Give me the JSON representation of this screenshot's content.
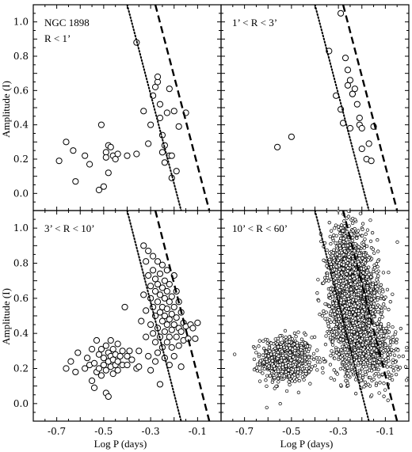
{
  "chart_data": {
    "type": "scatter",
    "xlabel": "Log P (days)",
    "ylabel": "Amplitude (I)",
    "xlim": [
      -0.8,
      0.0
    ],
    "ylim": [
      -0.1,
      1.1
    ],
    "xticks": [
      "-0.7",
      "-0.5",
      "-0.3",
      "-0.1"
    ],
    "xtick_values": [
      -0.7,
      -0.5,
      -0.3,
      -0.1
    ],
    "yticks": [
      "0.0",
      "0.2",
      "0.4",
      "0.6",
      "0.8",
      "1.0"
    ],
    "ytick_values": [
      0.0,
      0.2,
      0.4,
      0.6,
      0.8,
      1.0
    ],
    "lines": {
      "dotted": [
        [
          -0.4,
          1.1
        ],
        [
          -0.17,
          -0.1
        ]
      ],
      "dashed": [
        [
          -0.28,
          1.1
        ],
        [
          -0.05,
          -0.1
        ]
      ]
    },
    "panels": [
      {
        "name": "top-left",
        "title_lines": [
          "NGC 1898",
          "R < 1’"
        ],
        "marker_size": "large",
        "points": [
          [
            -0.69,
            0.19
          ],
          [
            -0.66,
            0.3
          ],
          [
            -0.63,
            0.25
          ],
          [
            -0.62,
            0.07
          ],
          [
            -0.58,
            0.22
          ],
          [
            -0.56,
            0.17
          ],
          [
            -0.52,
            0.02
          ],
          [
            -0.51,
            0.4
          ],
          [
            -0.5,
            0.04
          ],
          [
            -0.49,
            0.24
          ],
          [
            -0.49,
            0.21
          ],
          [
            -0.48,
            0.12
          ],
          [
            -0.48,
            0.28
          ],
          [
            -0.47,
            0.27
          ],
          [
            -0.46,
            0.22
          ],
          [
            -0.45,
            0.2
          ],
          [
            -0.44,
            0.23
          ],
          [
            -0.4,
            0.22
          ],
          [
            -0.36,
            0.23
          ],
          [
            -0.36,
            0.88
          ],
          [
            -0.33,
            0.48
          ],
          [
            -0.31,
            0.29
          ],
          [
            -0.3,
            0.4
          ],
          [
            -0.29,
            0.57
          ],
          [
            -0.28,
            0.62
          ],
          [
            -0.27,
            0.65
          ],
          [
            -0.27,
            0.68
          ],
          [
            -0.26,
            0.52
          ],
          [
            -0.26,
            0.44
          ],
          [
            -0.25,
            0.34
          ],
          [
            -0.25,
            0.24
          ],
          [
            -0.24,
            0.28
          ],
          [
            -0.24,
            0.18
          ],
          [
            -0.23,
            0.47
          ],
          [
            -0.22,
            0.61
          ],
          [
            -0.22,
            0.22
          ],
          [
            -0.21,
            0.09
          ],
          [
            -0.21,
            0.22
          ],
          [
            -0.2,
            0.48
          ],
          [
            -0.19,
            0.13
          ],
          [
            -0.18,
            0.39
          ],
          [
            -0.15,
            0.47
          ]
        ]
      },
      {
        "name": "top-right",
        "title_lines": [
          "1’ < R < 3’"
        ],
        "marker_size": "large",
        "points": [
          [
            -0.56,
            0.27
          ],
          [
            -0.5,
            0.33
          ],
          [
            -0.34,
            0.83
          ],
          [
            -0.31,
            0.57
          ],
          [
            -0.29,
            0.49
          ],
          [
            -0.29,
            1.05
          ],
          [
            -0.28,
            0.41
          ],
          [
            -0.27,
            0.79
          ],
          [
            -0.26,
            0.63
          ],
          [
            -0.26,
            0.72
          ],
          [
            -0.25,
            0.66
          ],
          [
            -0.25,
            0.38
          ],
          [
            -0.24,
            0.58
          ],
          [
            -0.24,
            0.58
          ],
          [
            -0.23,
            0.61
          ],
          [
            -0.22,
            0.52
          ],
          [
            -0.21,
            0.44
          ],
          [
            -0.21,
            0.4
          ],
          [
            -0.2,
            0.38
          ],
          [
            -0.2,
            0.26
          ],
          [
            -0.18,
            0.2
          ],
          [
            -0.17,
            0.29
          ],
          [
            -0.16,
            0.19
          ],
          [
            -0.15,
            0.39
          ]
        ]
      },
      {
        "name": "bottom-left",
        "title_lines": [
          "3’ < R < 10’"
        ],
        "marker_size": "large",
        "points": [
          [
            -0.66,
            0.2
          ],
          [
            -0.64,
            0.24
          ],
          [
            -0.62,
            0.18
          ],
          [
            -0.61,
            0.29
          ],
          [
            -0.58,
            0.2
          ],
          [
            -0.57,
            0.26
          ],
          [
            -0.56,
            0.22
          ],
          [
            -0.55,
            0.13
          ],
          [
            -0.55,
            0.31
          ],
          [
            -0.54,
            0.09
          ],
          [
            -0.54,
            0.23
          ],
          [
            -0.53,
            0.36
          ],
          [
            -0.53,
            0.18
          ],
          [
            -0.52,
            0.28
          ],
          [
            -0.52,
            0.2
          ],
          [
            -0.51,
            0.31
          ],
          [
            -0.51,
            0.16
          ],
          [
            -0.5,
            0.26
          ],
          [
            -0.5,
            0.22
          ],
          [
            -0.49,
            0.33
          ],
          [
            -0.49,
            0.19
          ],
          [
            -0.49,
            0.06
          ],
          [
            -0.48,
            0.29
          ],
          [
            -0.48,
            0.24
          ],
          [
            -0.48,
            0.04
          ],
          [
            -0.47,
            0.36
          ],
          [
            -0.47,
            0.27
          ],
          [
            -0.47,
            0.21
          ],
          [
            -0.46,
            0.31
          ],
          [
            -0.46,
            0.25
          ],
          [
            -0.46,
            0.17
          ],
          [
            -0.45,
            0.28
          ],
          [
            -0.45,
            0.22
          ],
          [
            -0.44,
            0.34
          ],
          [
            -0.44,
            0.24
          ],
          [
            -0.44,
            0.19
          ],
          [
            -0.43,
            0.27
          ],
          [
            -0.42,
            0.3
          ],
          [
            -0.42,
            0.22
          ],
          [
            -0.41,
            0.55
          ],
          [
            -0.4,
            0.27
          ],
          [
            -0.4,
            0.22
          ],
          [
            -0.39,
            0.3
          ],
          [
            -0.38,
            0.25
          ],
          [
            -0.36,
            0.2
          ],
          [
            -0.35,
            0.3
          ],
          [
            -0.35,
            0.21
          ],
          [
            -0.34,
            0.47
          ],
          [
            -0.33,
            0.9
          ],
          [
            -0.33,
            0.62
          ],
          [
            -0.32,
            0.81
          ],
          [
            -0.32,
            0.38
          ],
          [
            -0.32,
            0.53
          ],
          [
            -0.31,
            0.87
          ],
          [
            -0.31,
            0.73
          ],
          [
            -0.31,
            0.27
          ],
          [
            -0.3,
            0.67
          ],
          [
            -0.3,
            0.6
          ],
          [
            -0.3,
            0.45
          ],
          [
            -0.3,
            0.19
          ],
          [
            -0.29,
            0.84
          ],
          [
            -0.29,
            0.76
          ],
          [
            -0.29,
            0.55
          ],
          [
            -0.29,
            0.4
          ],
          [
            -0.28,
            0.71
          ],
          [
            -0.28,
            0.64
          ],
          [
            -0.28,
            0.5
          ],
          [
            -0.28,
            0.35
          ],
          [
            -0.28,
            0.24
          ],
          [
            -0.27,
            0.81
          ],
          [
            -0.27,
            0.68
          ],
          [
            -0.27,
            0.58
          ],
          [
            -0.27,
            0.43
          ],
          [
            -0.27,
            0.29
          ],
          [
            -0.26,
            0.74
          ],
          [
            -0.26,
            0.62
          ],
          [
            -0.26,
            0.52
          ],
          [
            -0.26,
            0.38
          ],
          [
            -0.26,
            0.11
          ],
          [
            -0.25,
            0.79
          ],
          [
            -0.25,
            0.66
          ],
          [
            -0.25,
            0.55
          ],
          [
            -0.25,
            0.47
          ],
          [
            -0.25,
            0.32
          ],
          [
            -0.24,
            0.7
          ],
          [
            -0.24,
            0.6
          ],
          [
            -0.24,
            0.5
          ],
          [
            -0.24,
            0.41
          ],
          [
            -0.24,
            0.26
          ],
          [
            -0.23,
            0.76
          ],
          [
            -0.23,
            0.64
          ],
          [
            -0.23,
            0.54
          ],
          [
            -0.23,
            0.45
          ],
          [
            -0.23,
            0.35
          ],
          [
            -0.22,
            0.68
          ],
          [
            -0.22,
            0.58
          ],
          [
            -0.22,
            0.48
          ],
          [
            -0.22,
            0.38
          ],
          [
            -0.22,
            0.22
          ],
          [
            -0.21,
            0.61
          ],
          [
            -0.21,
            0.51
          ],
          [
            -0.21,
            0.42
          ],
          [
            -0.21,
            0.32
          ],
          [
            -0.2,
            0.73
          ],
          [
            -0.2,
            0.55
          ],
          [
            -0.2,
            0.45
          ],
          [
            -0.2,
            0.27
          ],
          [
            -0.19,
            0.64
          ],
          [
            -0.19,
            0.49
          ],
          [
            -0.19,
            0.38
          ],
          [
            -0.18,
            0.58
          ],
          [
            -0.18,
            0.43
          ],
          [
            -0.18,
            0.33
          ],
          [
            -0.17,
            0.52
          ],
          [
            -0.17,
            0.41
          ],
          [
            -0.17,
            0.21
          ],
          [
            -0.16,
            0.46
          ],
          [
            -0.16,
            0.36
          ],
          [
            -0.15,
            0.44
          ],
          [
            -0.14,
            0.37
          ],
          [
            -0.13,
            0.45
          ],
          [
            -0.12,
            0.43
          ],
          [
            -0.11,
            0.37
          ],
          [
            -0.1,
            0.46
          ]
        ]
      },
      {
        "name": "bottom-right",
        "title_lines": [
          "10’ < R < 60’"
        ],
        "marker_size": "small",
        "clusters": [
          {
            "cx": -0.52,
            "cy": 0.25,
            "sx": 0.055,
            "sy": 0.065,
            "n": 650
          },
          {
            "cx": -0.23,
            "cy": 0.55,
            "sx": 0.05,
            "sy": 0.17,
            "n": 2100
          },
          {
            "cx": -0.27,
            "cy": 0.8,
            "sx": 0.035,
            "sy": 0.1,
            "n": 500
          },
          {
            "cx": -0.14,
            "cy": 0.3,
            "sx": 0.05,
            "sy": 0.08,
            "n": 300
          }
        ]
      }
    ]
  }
}
